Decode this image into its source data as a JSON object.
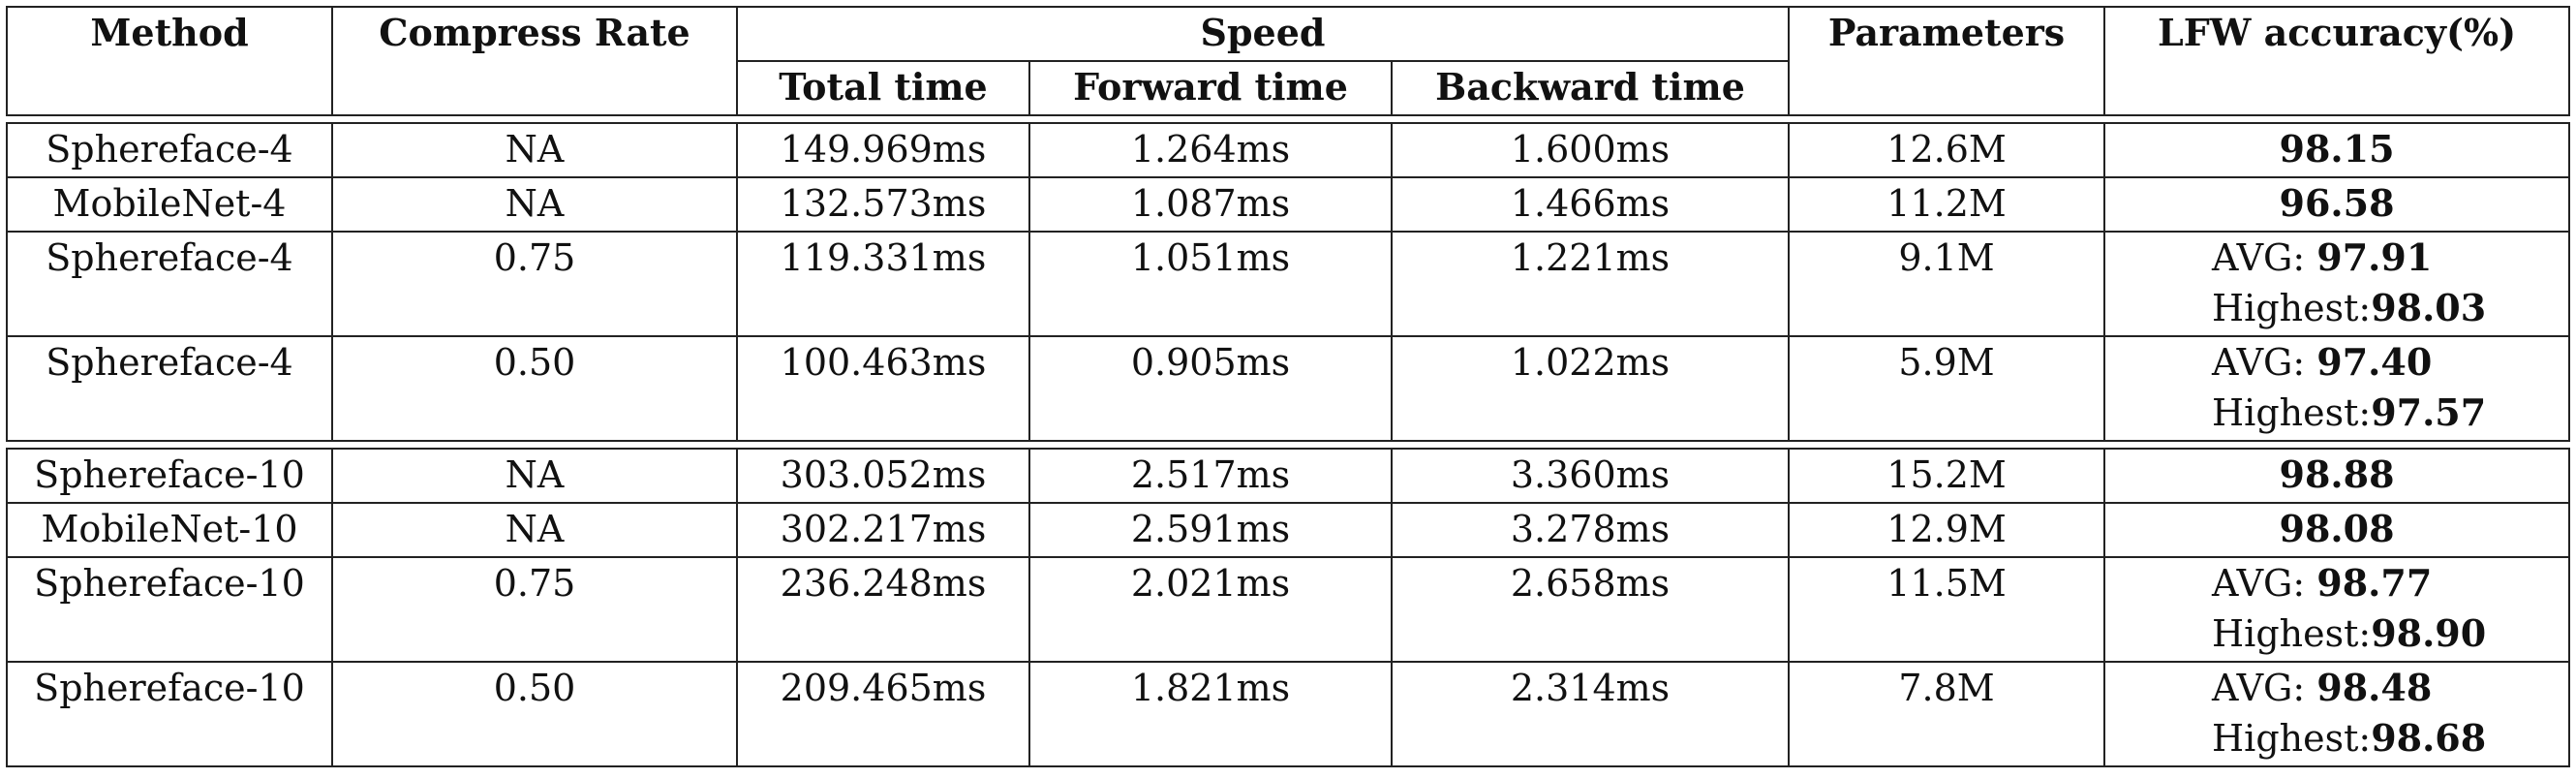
{
  "headers": {
    "method": "Method",
    "compress_rate": "Compress Rate",
    "speed": "Speed",
    "total_time": "Total time",
    "forward_time": "Forward time",
    "backward_time": "Backward time",
    "parameters": "Parameters",
    "lfw_accuracy": "LFW accuracy(%)"
  },
  "labels": {
    "avg": "AVG: ",
    "highest": "Highest:"
  },
  "group1": [
    {
      "method": "Sphereface-4",
      "rate": "NA",
      "total": "149.969ms",
      "forward": "1.264ms",
      "backward": "1.600ms",
      "params": "12.6M",
      "acc": "98.15"
    },
    {
      "method": "MobileNet-4",
      "rate": "NA",
      "total": "132.573ms",
      "forward": "1.087ms",
      "backward": "1.466ms",
      "params": "11.2M",
      "acc": "96.58"
    },
    {
      "method": "Sphereface-4",
      "rate": "0.75",
      "total": "119.331ms",
      "forward": "1.051ms",
      "backward": "1.221ms",
      "params": "9.1M",
      "avg": "97.91",
      "highest": "98.03"
    },
    {
      "method": "Sphereface-4",
      "rate": "0.50",
      "total": "100.463ms",
      "forward": "0.905ms",
      "backward": "1.022ms",
      "params": "5.9M",
      "avg": "97.40",
      "highest": "97.57"
    }
  ],
  "group2": [
    {
      "method": "Sphereface-10",
      "rate": "NA",
      "total": "303.052ms",
      "forward": "2.517ms",
      "backward": "3.360ms",
      "params": "15.2M",
      "acc": "98.88"
    },
    {
      "method": "MobileNet-10",
      "rate": "NA",
      "total": "302.217ms",
      "forward": "2.591ms",
      "backward": "3.278ms",
      "params": "12.9M",
      "acc": "98.08"
    },
    {
      "method": "Sphereface-10",
      "rate": "0.75",
      "total": "236.248ms",
      "forward": "2.021ms",
      "backward": "2.658ms",
      "params": "11.5M",
      "avg": "98.77",
      "highest": "98.90"
    },
    {
      "method": "Sphereface-10",
      "rate": "0.50",
      "total": "209.465ms",
      "forward": "1.821ms",
      "backward": "2.314ms",
      "params": "7.8M",
      "avg": "98.48",
      "highest": "98.68"
    }
  ]
}
